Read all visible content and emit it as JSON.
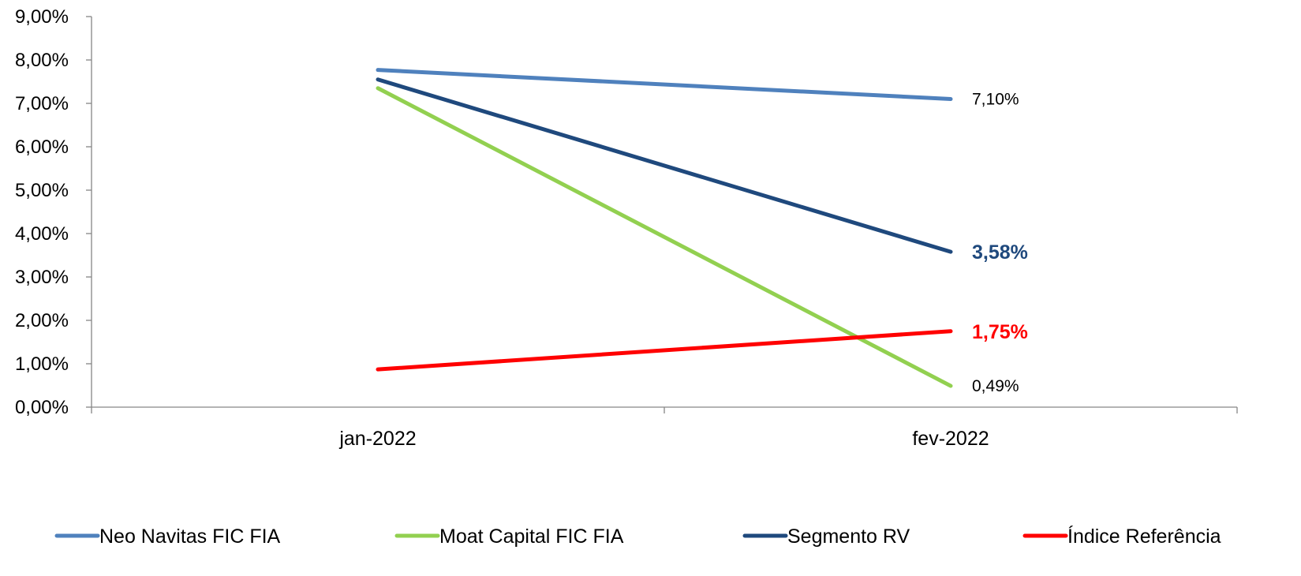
{
  "chart_data": {
    "type": "line",
    "categories": [
      "jan-2022",
      "fev-2022"
    ],
    "ylim": [
      0,
      9
    ],
    "y_tick_labels": [
      "0,00%",
      "1,00%",
      "2,00%",
      "3,00%",
      "4,00%",
      "5,00%",
      "6,00%",
      "7,00%",
      "8,00%",
      "9,00%"
    ],
    "grid": false,
    "legend_position": "bottom",
    "series": [
      {
        "name": "Neo Navitas FIC FIA",
        "color": "#4f81bd",
        "values": [
          7.77,
          7.1
        ],
        "end_label": "7,10%",
        "end_label_color": "#000000",
        "end_label_bold": false
      },
      {
        "name": "Moat Capital FIC FIA",
        "color": "#92d050",
        "values": [
          7.35,
          0.49
        ],
        "end_label": "0,49%",
        "end_label_color": "#000000",
        "end_label_bold": false
      },
      {
        "name": "Segmento RV",
        "color": "#1f497d",
        "values": [
          7.55,
          3.58
        ],
        "end_label": "3,58%",
        "end_label_color": "#1f497d",
        "end_label_bold": true
      },
      {
        "name": "Índice Referência",
        "color": "#ff0000",
        "values": [
          0.87,
          1.75
        ],
        "end_label": "1,75%",
        "end_label_color": "#ff0000",
        "end_label_bold": true
      }
    ]
  }
}
